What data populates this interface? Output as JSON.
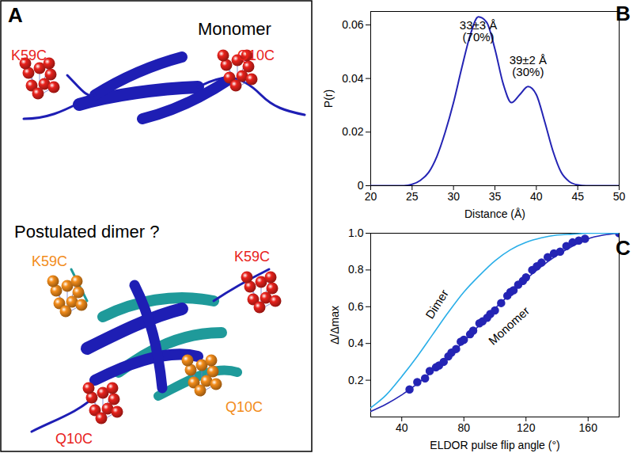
{
  "panel_a": {
    "label": "A",
    "monomer": {
      "title": "Monomer",
      "sites": [
        {
          "label": "K59C",
          "color": "#e8221c"
        },
        {
          "label": "Q10C",
          "color": "#e8221c"
        }
      ]
    },
    "dimer": {
      "title": "Postulated dimer ?",
      "sites": [
        {
          "label": "K59C",
          "color": "#f28c1a"
        },
        {
          "label": "K59C",
          "color": "#e8221c"
        },
        {
          "label": "Q10C",
          "color": "#f28c1a"
        },
        {
          "label": "Q10C",
          "color": "#e8221c"
        }
      ]
    }
  },
  "chart_data": [
    {
      "type": "line",
      "title": "B",
      "x_label": "Distance (Å)",
      "y_label": "P(r)",
      "x": [
        20,
        21,
        22,
        23,
        24,
        25,
        26,
        27,
        28,
        29,
        30,
        31,
        32,
        33,
        34,
        35,
        36,
        37,
        38,
        39,
        40,
        41,
        42,
        43,
        44,
        45,
        46,
        47,
        48,
        49,
        50
      ],
      "values": [
        0,
        0,
        0,
        0,
        0,
        0.0005,
        0.002,
        0.005,
        0.011,
        0.02,
        0.031,
        0.044,
        0.056,
        0.063,
        0.061,
        0.051,
        0.038,
        0.031,
        0.034,
        0.037,
        0.034,
        0.024,
        0.013,
        0.005,
        0.0015,
        0.0003,
        0,
        0,
        0,
        0,
        0
      ],
      "color": "#2424b4",
      "xlim": [
        20,
        50
      ],
      "xticks": [
        20,
        25,
        30,
        35,
        40,
        45,
        50
      ],
      "ylim": [
        0,
        0.065
      ],
      "yticks": [
        0,
        0.02,
        0.04,
        0.06
      ],
      "annotations": [
        "33±3 Å\n(70%)",
        "39±2 Å\n(30%)"
      ]
    },
    {
      "type": "scatter",
      "title": "C",
      "x_label": "ELDOR pulse flip angle (°)",
      "y_label": "Δ/Δmax",
      "xlim": [
        20,
        180
      ],
      "xticks": [
        40,
        80,
        120,
        160
      ],
      "ylim": [
        0,
        1
      ],
      "yticks": [
        0.2,
        0.4,
        0.6,
        0.8,
        {
          "value": 1,
          "label": "1.0"
        }
      ],
      "series": [
        {
          "type": "scatter",
          "marker": "circle",
          "color": "#2424b4",
          "x": [
            45,
            50,
            55,
            58,
            62,
            64,
            67,
            70,
            72,
            75,
            78,
            80,
            84,
            86,
            90,
            92,
            95,
            97,
            100,
            104,
            108,
            110,
            112,
            115,
            118,
            120,
            124,
            127,
            130,
            134,
            138,
            142,
            146,
            150,
            154,
            158,
            180
          ],
          "values": [
            0.15,
            0.19,
            0.21,
            0.25,
            0.27,
            0.28,
            0.3,
            0.33,
            0.35,
            0.37,
            0.41,
            0.42,
            0.45,
            0.47,
            0.51,
            0.52,
            0.54,
            0.56,
            0.58,
            0.62,
            0.66,
            0.68,
            0.69,
            0.72,
            0.74,
            0.76,
            0.8,
            0.82,
            0.84,
            0.87,
            0.89,
            0.9,
            0.93,
            0.95,
            0.96,
            0.97,
            1.0
          ]
        },
        {
          "name": "Monomer",
          "type": "line",
          "line_style": "solid",
          "color": "#2424b4",
          "x": [
            20,
            30,
            40,
            50,
            60,
            70,
            80,
            90,
            100,
            110,
            120,
            130,
            140,
            150,
            160,
            170,
            180
          ],
          "values": [
            0.03,
            0.07,
            0.12,
            0.18,
            0.25,
            0.33,
            0.41,
            0.5,
            0.59,
            0.67,
            0.75,
            0.82,
            0.88,
            0.93,
            0.97,
            0.99,
            1.0
          ]
        },
        {
          "name": "Dimer",
          "type": "line",
          "line_style": "solid",
          "color": "#29aee8",
          "x": [
            20,
            30,
            40,
            50,
            60,
            70,
            80,
            90,
            100,
            110,
            120,
            130,
            140,
            150,
            160,
            170,
            180
          ],
          "values": [
            0.05,
            0.12,
            0.22,
            0.33,
            0.45,
            0.57,
            0.68,
            0.77,
            0.85,
            0.91,
            0.95,
            0.975,
            0.99,
            0.995,
            1.0,
            1.0,
            1.0
          ]
        }
      ]
    }
  ]
}
